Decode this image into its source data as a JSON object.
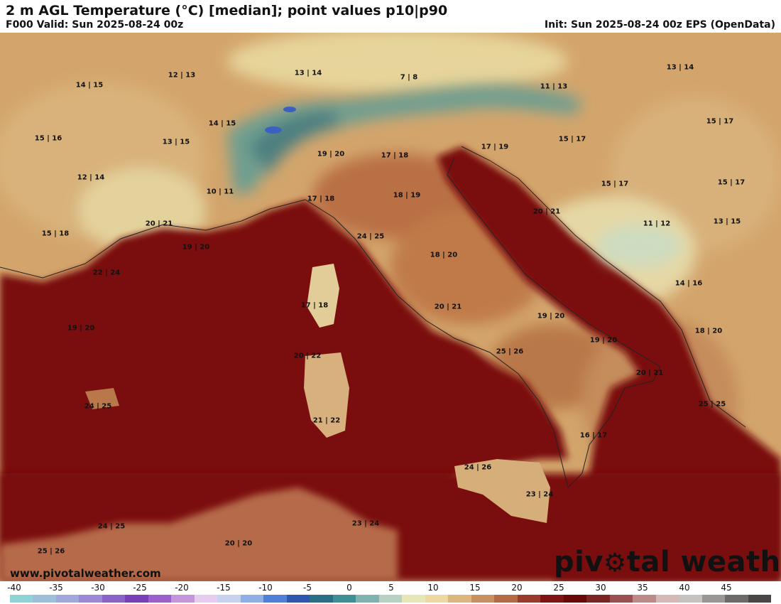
{
  "header": {
    "title": "2 m AGL Temperature (°C) [median]; point values p10|p90",
    "valid": "F000 Valid: Sun 2025-08-24 00z",
    "init": "Init: Sun 2025-08-24 00z EPS (OpenData)"
  },
  "points": [
    {
      "label": "14 | 15"
    },
    {
      "label": "12 | 13"
    },
    {
      "label": "13 | 14"
    },
    {
      "label": "7 | 8"
    },
    {
      "label": "11 | 13"
    },
    {
      "label": "13 | 14"
    },
    {
      "label": "14 | 15"
    },
    {
      "label": "15 | 16"
    },
    {
      "label": "13 | 15"
    },
    {
      "label": "15 | 17"
    },
    {
      "label": "19 | 20"
    },
    {
      "label": "17 | 18"
    },
    {
      "label": "17 | 19"
    },
    {
      "label": "15 | 17"
    },
    {
      "label": "12 | 14"
    },
    {
      "label": "10 | 11"
    },
    {
      "label": "17 | 18"
    },
    {
      "label": "18 | 19"
    },
    {
      "label": "15 | 17"
    },
    {
      "label": "15 | 17"
    },
    {
      "label": "20 | 21"
    },
    {
      "label": "15 | 18"
    },
    {
      "label": "20 | 21"
    },
    {
      "label": "24 | 25"
    },
    {
      "label": "11 | 12"
    },
    {
      "label": "13 | 15"
    },
    {
      "label": "19 | 20"
    },
    {
      "label": "18 | 20"
    },
    {
      "label": "22 | 24"
    },
    {
      "label": "14 | 16"
    },
    {
      "label": "17 | 18"
    },
    {
      "label": "20 | 21"
    },
    {
      "label": "19 | 20"
    },
    {
      "label": "19 | 20"
    },
    {
      "label": "18 | 20"
    },
    {
      "label": "19 | 20"
    },
    {
      "label": "20 | 22"
    },
    {
      "label": "25 | 26"
    },
    {
      "label": "20 | 21"
    },
    {
      "label": "24 | 25"
    },
    {
      "label": "25 | 25"
    },
    {
      "label": "21 | 22"
    },
    {
      "label": "16 | 17"
    },
    {
      "label": "24 | 26"
    },
    {
      "label": "23 | 24"
    },
    {
      "label": "24 | 25"
    },
    {
      "label": "23 | 24"
    },
    {
      "label": "20 | 20"
    },
    {
      "label": "25 | 26"
    }
  ],
  "branding": {
    "site": "www.pivotalweather.com",
    "logo_left": "piv",
    "logo_right": "tal weather"
  },
  "legend": {
    "ticks": [
      "-40",
      "-35",
      "-30",
      "-25",
      "-20",
      "-15",
      "-10",
      "-5",
      "0",
      "5",
      "10",
      "15",
      "20",
      "25",
      "30",
      "35",
      "40",
      "45"
    ],
    "colors": [
      "#8fd3d6",
      "#9cc0dc",
      "#a3a8dc",
      "#9c88d6",
      "#8a62c8",
      "#7a3fb8",
      "#9c5fcc",
      "#c596dc",
      "#e6ccee",
      "#c6d2ee",
      "#8fb0e6",
      "#4f7fd6",
      "#2f57b0",
      "#2a6f86",
      "#3f8f96",
      "#7fb2b0",
      "#b7d2c2",
      "#e6e6b6",
      "#ecd8a0",
      "#dcb67e",
      "#c89060",
      "#b46a44",
      "#9a3a2c",
      "#7e1414",
      "#6a0808",
      "#7a2424",
      "#9a5050",
      "#bc8a88",
      "#d6b8b6",
      "#c6c2c0",
      "#9a9696",
      "#6e6a6a",
      "#4a4646"
    ]
  }
}
